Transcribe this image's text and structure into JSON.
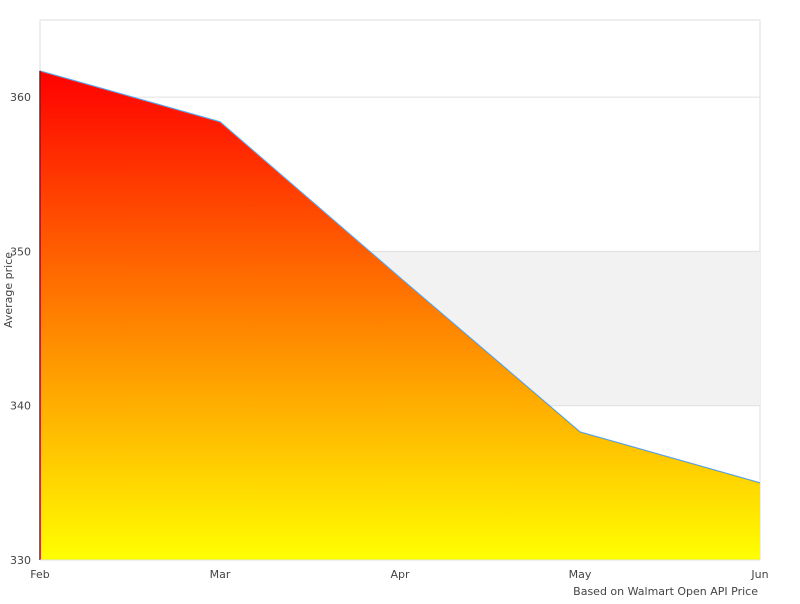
{
  "chart_data": {
    "type": "area",
    "title": "",
    "xlabel": "",
    "ylabel": "Average price",
    "caption": "Based on Walmart Open API Price",
    "categories": [
      "Feb",
      "Mar",
      "Apr",
      "May",
      "Jun"
    ],
    "series": [
      {
        "values": [
          361.7,
          358.4,
          348.3,
          338.3,
          335.0
        ]
      }
    ],
    "ylim": [
      330,
      365
    ],
    "yticks": [
      330,
      340,
      350,
      360
    ],
    "grid": true,
    "shaded_band": [
      340,
      350
    ],
    "legend": "none",
    "colors": {
      "fill_top": "#ff0000",
      "fill_bottom": "#ffff00",
      "line": "#5aa0e6",
      "band": "#f2f2f2",
      "grid": "#e0e0e0"
    }
  }
}
